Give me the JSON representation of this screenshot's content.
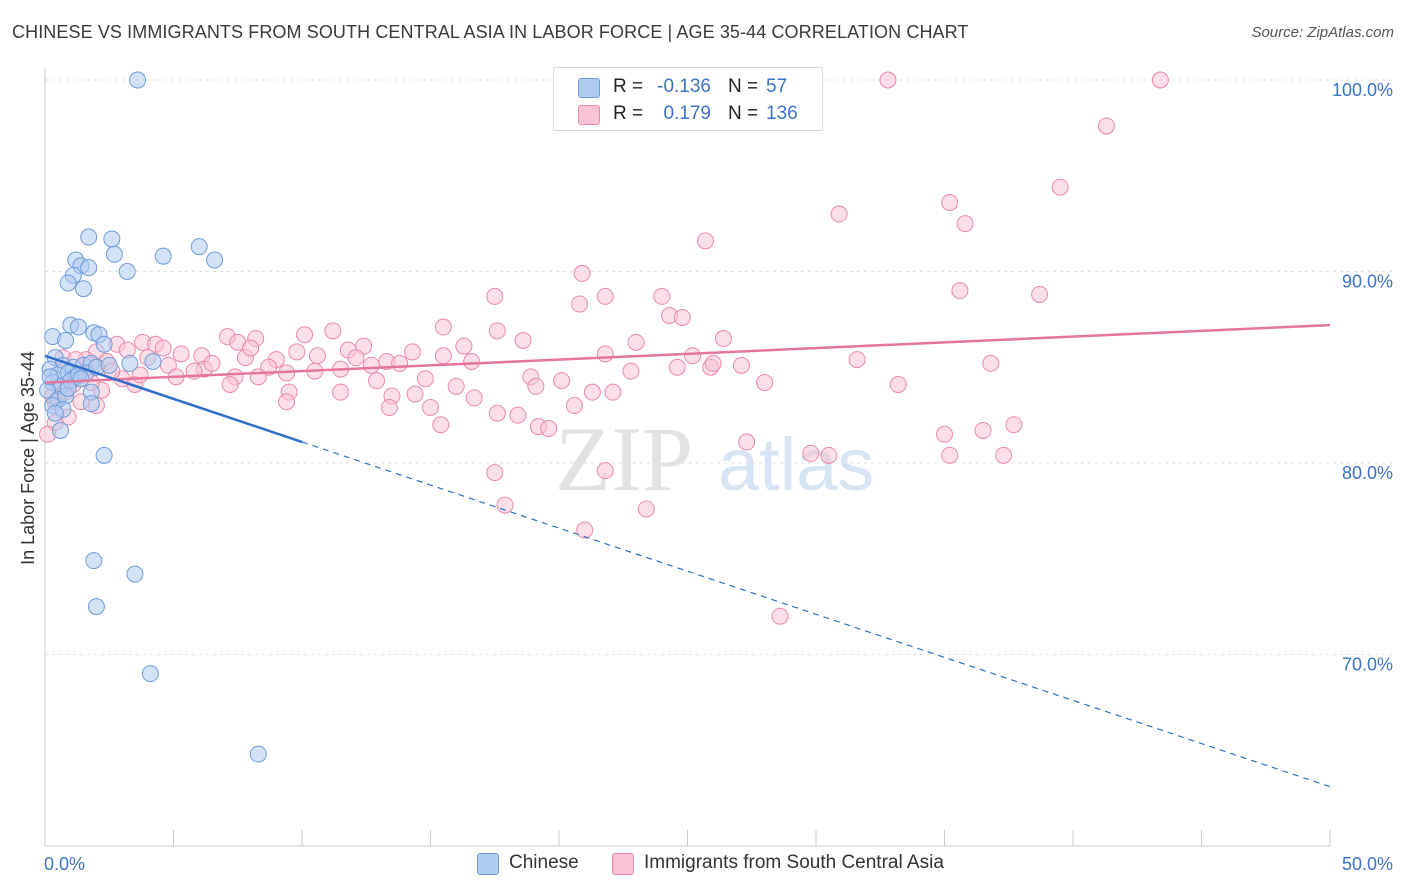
{
  "title": "CHINESE VS IMMIGRANTS FROM SOUTH CENTRAL ASIA IN LABOR FORCE | AGE 35-44 CORRELATION CHART",
  "source": "Source: ZipAtlas.com",
  "legend": {
    "rows": [
      {
        "name": "Chinese",
        "r_label": "R =",
        "r": "-0.136",
        "n_label": "N =",
        "n": "57",
        "color": "#aecbf0",
        "border": "#6f9bd8"
      },
      {
        "name": "Immigrants from South Central Asia",
        "r_label": "R =",
        "r": "0.179",
        "n_label": "N =",
        "n": "136",
        "color": "#f8c3d4",
        "border": "#e98aaa"
      }
    ]
  },
  "watermark": {
    "zip": "ZIP",
    "atlas": "atlas"
  },
  "chart_data": {
    "type": "scatter",
    "title": "CHINESE VS IMMIGRANTS FROM SOUTH CENTRAL ASIA IN LABOR FORCE | AGE 35-44 CORRELATION CHART",
    "xlabel": "",
    "ylabel": "In Labor Force | Age 35-44",
    "xlim": [
      0,
      50
    ],
    "ylim": [
      61,
      101.5
    ],
    "x_tick_labels": [
      "0.0%",
      "50.0%"
    ],
    "y_ticks": [
      70,
      80,
      90,
      100
    ],
    "y_tick_labels": [
      "70.0%",
      "80.0%",
      "90.0%",
      "100.0%"
    ],
    "grid": true,
    "series": [
      {
        "name": "Chinese",
        "color": "#6f9bd8",
        "fill": "#aecbf0",
        "trend": {
          "x0": 0,
          "y0": 85.6,
          "x_solid_end": 10,
          "x_end": 50,
          "y_end": 63.1,
          "color": "#2f6fcb"
        },
        "points": [
          [
            3.6,
            100
          ],
          [
            1.7,
            91.8
          ],
          [
            2.6,
            91.7
          ],
          [
            6.0,
            91.3
          ],
          [
            2.7,
            90.9
          ],
          [
            4.6,
            90.8
          ],
          [
            6.6,
            90.6
          ],
          [
            1.2,
            90.6
          ],
          [
            1.4,
            90.3
          ],
          [
            1.7,
            90.2
          ],
          [
            3.2,
            90.0
          ],
          [
            1.1,
            89.8
          ],
          [
            0.9,
            89.4
          ],
          [
            1.5,
            89.1
          ],
          [
            1.0,
            87.2
          ],
          [
            1.3,
            87.1
          ],
          [
            1.9,
            86.8
          ],
          [
            2.1,
            86.7
          ],
          [
            0.3,
            86.6
          ],
          [
            0.8,
            86.4
          ],
          [
            2.3,
            86.2
          ],
          [
            0.4,
            85.5
          ],
          [
            0.7,
            85.1
          ],
          [
            1.1,
            85.0
          ],
          [
            1.5,
            85.1
          ],
          [
            1.8,
            85.2
          ],
          [
            0.2,
            84.9
          ],
          [
            0.5,
            84.6
          ],
          [
            0.9,
            84.7
          ],
          [
            1.2,
            84.5
          ],
          [
            1.6,
            84.7
          ],
          [
            2.0,
            85.0
          ],
          [
            0.3,
            84.2
          ],
          [
            0.6,
            84.0
          ],
          [
            1.0,
            84.3
          ],
          [
            1.3,
            84.6
          ],
          [
            0.1,
            83.8
          ],
          [
            0.5,
            83.3
          ],
          [
            0.8,
            83.5
          ],
          [
            1.8,
            83.7
          ],
          [
            0.3,
            83.0
          ],
          [
            0.7,
            82.8
          ],
          [
            1.8,
            83.1
          ],
          [
            0.4,
            82.6
          ],
          [
            0.6,
            81.7
          ],
          [
            3.3,
            85.2
          ],
          [
            4.2,
            85.3
          ],
          [
            2.3,
            80.4
          ],
          [
            1.9,
            74.9
          ],
          [
            3.5,
            74.2
          ],
          [
            2.0,
            72.5
          ],
          [
            4.1,
            69.0
          ],
          [
            8.3,
            64.8
          ],
          [
            0.2,
            84.5
          ],
          [
            0.9,
            83.9
          ],
          [
            1.4,
            84.4
          ],
          [
            2.5,
            85.1
          ]
        ]
      },
      {
        "name": "Immigrants from South Central Asia",
        "color": "#e98aaa",
        "fill": "#f8c3d4",
        "trend": {
          "x0": 0,
          "y0": 84.2,
          "x_end": 50,
          "y_end": 87.2,
          "color": "#e5759b"
        },
        "points": [
          [
            32.8,
            100
          ],
          [
            43.4,
            100
          ],
          [
            41.3,
            97.6
          ],
          [
            39.5,
            94.4
          ],
          [
            35.2,
            93.6
          ],
          [
            30.9,
            93.0
          ],
          [
            35.8,
            92.5
          ],
          [
            25.7,
            91.6
          ],
          [
            20.9,
            89.9
          ],
          [
            35.6,
            89.0
          ],
          [
            38.7,
            88.8
          ],
          [
            17.5,
            88.7
          ],
          [
            21.8,
            88.7
          ],
          [
            24.0,
            88.7
          ],
          [
            20.8,
            88.3
          ],
          [
            24.3,
            87.7
          ],
          [
            24.8,
            87.6
          ],
          [
            15.5,
            87.1
          ],
          [
            11.2,
            86.9
          ],
          [
            17.6,
            86.9
          ],
          [
            10.1,
            86.7
          ],
          [
            7.1,
            86.6
          ],
          [
            8.2,
            86.5
          ],
          [
            26.4,
            86.5
          ],
          [
            18.6,
            86.4
          ],
          [
            23.0,
            86.3
          ],
          [
            12.4,
            86.1
          ],
          [
            16.3,
            86.1
          ],
          [
            3.8,
            86.3
          ],
          [
            4.3,
            86.2
          ],
          [
            7.5,
            86.3
          ],
          [
            2.8,
            86.2
          ],
          [
            4.6,
            86.0
          ],
          [
            3.2,
            85.9
          ],
          [
            14.3,
            85.8
          ],
          [
            11.8,
            85.9
          ],
          [
            9.8,
            85.8
          ],
          [
            21.8,
            85.7
          ],
          [
            5.3,
            85.7
          ],
          [
            6.1,
            85.6
          ],
          [
            2.0,
            85.8
          ],
          [
            10.6,
            85.6
          ],
          [
            15.5,
            85.6
          ],
          [
            25.2,
            85.6
          ],
          [
            7.8,
            85.5
          ],
          [
            9.0,
            85.4
          ],
          [
            13.3,
            85.3
          ],
          [
            13.8,
            85.2
          ],
          [
            1.6,
            85.4
          ],
          [
            31.6,
            85.4
          ],
          [
            12.7,
            85.1
          ],
          [
            27.1,
            85.1
          ],
          [
            36.8,
            85.2
          ],
          [
            0.7,
            85.5
          ],
          [
            1.2,
            85.4
          ],
          [
            2.4,
            85.3
          ],
          [
            4.8,
            85.1
          ],
          [
            8.7,
            85.0
          ],
          [
            11.5,
            84.9
          ],
          [
            24.6,
            85.0
          ],
          [
            25.9,
            85.0
          ],
          [
            6.2,
            84.9
          ],
          [
            9.4,
            84.7
          ],
          [
            1.6,
            84.7
          ],
          [
            3.0,
            84.4
          ],
          [
            8.3,
            84.5
          ],
          [
            14.8,
            84.4
          ],
          [
            20.1,
            84.3
          ],
          [
            5.1,
            84.5
          ],
          [
            7.4,
            84.5
          ],
          [
            12.9,
            84.3
          ],
          [
            28.0,
            84.2
          ],
          [
            33.2,
            84.1
          ],
          [
            3.5,
            84.1
          ],
          [
            16.0,
            84.0
          ],
          [
            1.1,
            84.1
          ],
          [
            0.6,
            84.0
          ],
          [
            2.2,
            83.8
          ],
          [
            9.5,
            83.7
          ],
          [
            11.5,
            83.7
          ],
          [
            14.4,
            83.6
          ],
          [
            21.3,
            83.7
          ],
          [
            22.1,
            83.7
          ],
          [
            16.7,
            83.4
          ],
          [
            13.5,
            83.5
          ],
          [
            9.4,
            83.2
          ],
          [
            0.4,
            83.2
          ],
          [
            1.4,
            83.2
          ],
          [
            2.0,
            83.0
          ],
          [
            13.4,
            82.9
          ],
          [
            15.0,
            82.9
          ],
          [
            20.6,
            83.0
          ],
          [
            17.6,
            82.6
          ],
          [
            18.4,
            82.5
          ],
          [
            0.9,
            82.4
          ],
          [
            0.4,
            82.1
          ],
          [
            15.4,
            82.0
          ],
          [
            19.2,
            81.9
          ],
          [
            19.6,
            81.8
          ],
          [
            37.7,
            82.0
          ],
          [
            36.5,
            81.7
          ],
          [
            35.0,
            81.5
          ],
          [
            0.1,
            81.5
          ],
          [
            27.3,
            81.1
          ],
          [
            29.8,
            80.5
          ],
          [
            30.5,
            80.4
          ],
          [
            35.2,
            80.4
          ],
          [
            37.3,
            80.4
          ],
          [
            17.5,
            79.5
          ],
          [
            21.8,
            79.6
          ],
          [
            17.9,
            77.8
          ],
          [
            23.4,
            77.6
          ],
          [
            21.0,
            76.5
          ],
          [
            28.6,
            72.0
          ],
          [
            10.5,
            84.8
          ],
          [
            18.9,
            84.5
          ],
          [
            6.5,
            85.2
          ],
          [
            3.7,
            84.6
          ],
          [
            0.3,
            83.5
          ],
          [
            1.8,
            84.2
          ],
          [
            2.6,
            84.8
          ],
          [
            19.1,
            84.0
          ],
          [
            26.0,
            85.2
          ],
          [
            4.0,
            85.5
          ],
          [
            5.8,
            84.8
          ],
          [
            8.0,
            86.0
          ],
          [
            0.8,
            83.7
          ],
          [
            12.1,
            85.5
          ],
          [
            16.6,
            85.3
          ],
          [
            22.8,
            84.8
          ],
          [
            1.9,
            85.1
          ],
          [
            7.2,
            84.1
          ]
        ]
      }
    ]
  }
}
